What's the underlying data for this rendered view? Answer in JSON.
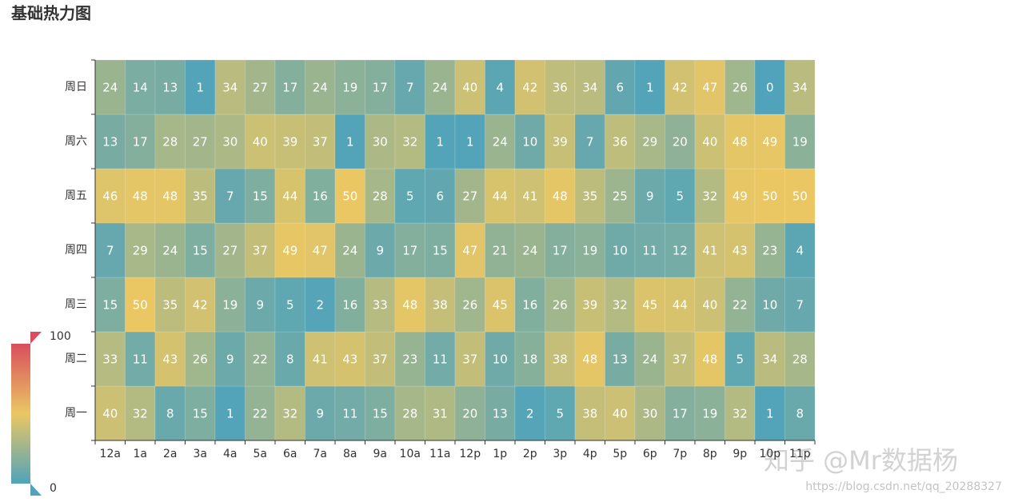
{
  "chart_data": {
    "type": "heatmap",
    "title": "基础热力图",
    "categories": [
      "12a",
      "1a",
      "2a",
      "3a",
      "4a",
      "5a",
      "6a",
      "7a",
      "8a",
      "9a",
      "10a",
      "11a",
      "12p",
      "1p",
      "2p",
      "3p",
      "4p",
      "5p",
      "6p",
      "7p",
      "8p",
      "9p",
      "10p",
      "11p"
    ],
    "y_categories": [
      "周一",
      "周二",
      "周三",
      "周四",
      "周五",
      "周六",
      "周日"
    ],
    "values": [
      [
        40,
        32,
        8,
        15,
        1,
        22,
        32,
        9,
        11,
        15,
        28,
        31,
        20,
        13,
        2,
        5,
        38,
        40,
        30,
        17,
        19,
        32,
        1,
        8
      ],
      [
        33,
        11,
        43,
        26,
        9,
        22,
        8,
        41,
        43,
        37,
        23,
        11,
        37,
        10,
        18,
        38,
        48,
        13,
        24,
        37,
        48,
        5,
        34,
        28
      ],
      [
        15,
        50,
        35,
        42,
        19,
        9,
        5,
        2,
        16,
        33,
        48,
        38,
        26,
        45,
        16,
        26,
        39,
        32,
        45,
        44,
        40,
        22,
        10,
        7
      ],
      [
        7,
        29,
        24,
        15,
        27,
        37,
        49,
        47,
        24,
        9,
        17,
        15,
        47,
        21,
        24,
        17,
        19,
        10,
        11,
        12,
        41,
        43,
        23,
        4
      ],
      [
        46,
        48,
        48,
        35,
        7,
        15,
        44,
        16,
        50,
        28,
        5,
        6,
        27,
        44,
        41,
        48,
        35,
        25,
        9,
        5,
        32,
        49,
        50,
        50
      ],
      [
        13,
        17,
        28,
        27,
        30,
        40,
        39,
        37,
        1,
        30,
        32,
        1,
        1,
        24,
        10,
        39,
        7,
        36,
        29,
        20,
        40,
        48,
        49,
        19
      ],
      [
        24,
        14,
        13,
        1,
        34,
        27,
        17,
        24,
        19,
        17,
        7,
        24,
        40,
        4,
        42,
        36,
        34,
        6,
        1,
        42,
        47,
        26,
        0,
        34
      ]
    ],
    "visual_map": {
      "min": 0,
      "max": 100,
      "colors": [
        "#50a3ba",
        "#eac763",
        "#d94e5d"
      ]
    },
    "watermark": "知乎 @Mr数据杨",
    "source": "https://blog.csdn.net/qq_20288327"
  }
}
